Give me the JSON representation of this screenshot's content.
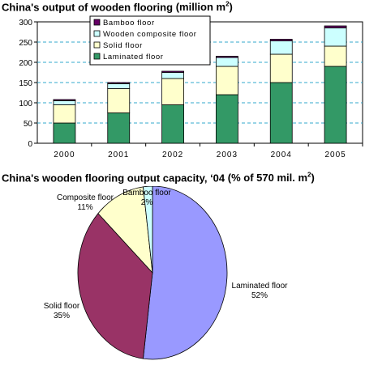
{
  "chart_data": [
    {
      "type": "bar",
      "stacked": true,
      "title": "China's output of wooden flooring",
      "title_unit": "(million m",
      "title_unit_sup": "2",
      "title_unit_close": ")",
      "categories": [
        "2000",
        "2001",
        "2002",
        "2003",
        "2004",
        "2005"
      ],
      "ylim": [
        0,
        300
      ],
      "yticks": [
        0,
        50,
        100,
        150,
        200,
        250,
        300
      ],
      "grid": "horizontal-dashed",
      "legend_position": "top-left",
      "series": [
        {
          "name": "Laminated floor",
          "color": "#339966",
          "values": [
            50,
            75,
            95,
            120,
            150,
            190
          ]
        },
        {
          "name": "Solid floor",
          "color": "#ffffcc",
          "values": [
            45,
            60,
            65,
            70,
            70,
            50
          ]
        },
        {
          "name": "Wooden composite floor",
          "color": "#ccffff",
          "values": [
            10,
            12,
            15,
            22,
            33,
            45
          ]
        },
        {
          "name": "Bamboo floor",
          "color": "#660066",
          "values": [
            3,
            3,
            3,
            3,
            4,
            5
          ]
        }
      ],
      "legend_order": [
        "Bamboo floor",
        "Wooden composite floor",
        "Solid floor",
        "Laminated floor"
      ]
    },
    {
      "type": "pie",
      "title": "China's wooden flooring output capacity, ‘04",
      "title_unit": "(% of 570 mil. m",
      "title_unit_sup": "2",
      "title_unit_close": ")",
      "slices": [
        {
          "name": "Laminated floor",
          "value": 52,
          "label": "52%",
          "color": "#9999ff"
        },
        {
          "name": "Solid floor",
          "value": 35,
          "label": "35%",
          "color": "#993366"
        },
        {
          "name": "Composite floor",
          "value": 11,
          "label": "11%",
          "color": "#ffffcc"
        },
        {
          "name": "Bamboo floor",
          "value": 2,
          "label": "2%",
          "color": "#ccffff"
        }
      ]
    }
  ]
}
